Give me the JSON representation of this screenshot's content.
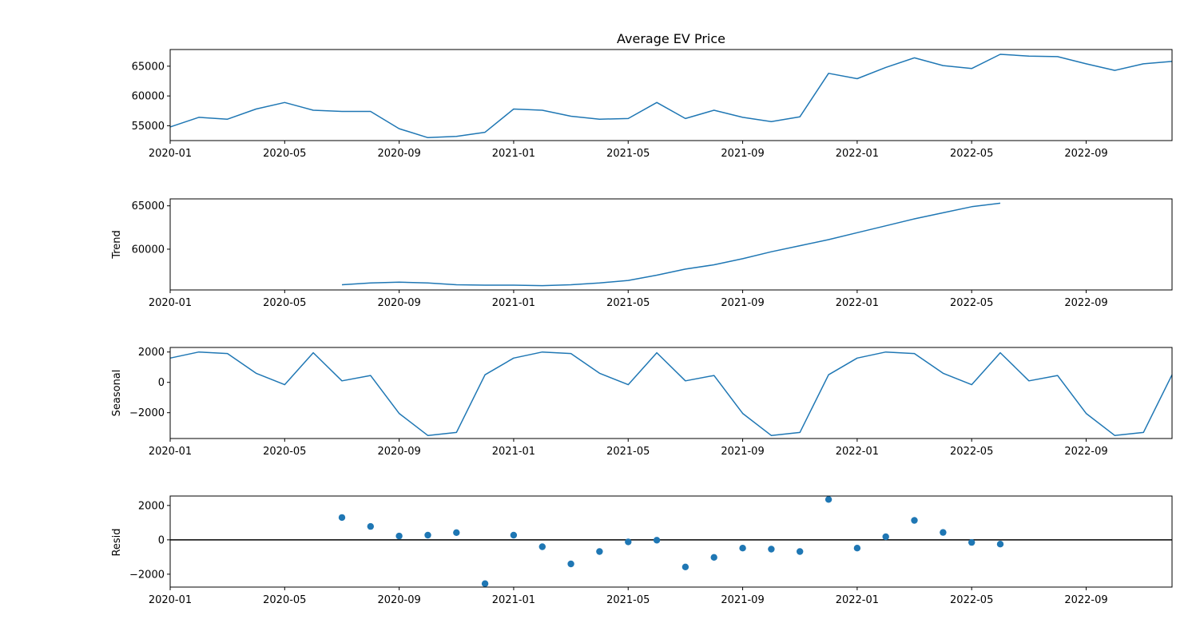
{
  "chart_data": [
    {
      "type": "line",
      "title": "Average EV Price",
      "ylabel": "",
      "xlim": [
        "2020-01",
        "2022-12"
      ],
      "ylim": [
        52500,
        67800
      ],
      "yticks": [
        55000,
        60000,
        65000
      ],
      "xticks": [
        "2020-01",
        "2020-05",
        "2020-09",
        "2021-01",
        "2021-05",
        "2021-09",
        "2022-01",
        "2022-05",
        "2022-09"
      ],
      "color": "#1f77b4",
      "series": [
        {
          "x": [
            "2020-01",
            "2020-02",
            "2020-03",
            "2020-04",
            "2020-05",
            "2020-06",
            "2020-07",
            "2020-08",
            "2020-09",
            "2020-10",
            "2020-11",
            "2020-12",
            "2021-01",
            "2021-02",
            "2021-03",
            "2021-04",
            "2021-05",
            "2021-06",
            "2021-07",
            "2021-08",
            "2021-09",
            "2021-10",
            "2021-11",
            "2021-12",
            "2022-01",
            "2022-02",
            "2022-03",
            "2022-04",
            "2022-05",
            "2022-06",
            "2022-07",
            "2022-08",
            "2022-09",
            "2022-10",
            "2022-11",
            "2022-12"
          ],
          "values": [
            54800,
            56400,
            56100,
            57800,
            58900,
            57600,
            57400,
            57400,
            54500,
            53000,
            53200,
            53900,
            57800,
            57600,
            56600,
            56100,
            56200,
            58900,
            56200,
            57600,
            56400,
            55700,
            56500,
            63800,
            62900,
            64800,
            66400,
            65100,
            64600,
            67000,
            66700,
            66600,
            65400,
            64300,
            65400,
            65800
          ]
        }
      ]
    },
    {
      "type": "line",
      "title": "",
      "ylabel": "Trend",
      "xlim": [
        "2020-01",
        "2022-12"
      ],
      "ylim": [
        55300,
        65800
      ],
      "yticks": [
        60000,
        65000
      ],
      "xticks": [
        "2020-01",
        "2020-05",
        "2020-09",
        "2021-01",
        "2021-05",
        "2021-09",
        "2022-01",
        "2022-05",
        "2022-09"
      ],
      "color": "#1f77b4",
      "series": [
        {
          "x": [
            "2020-07",
            "2020-08",
            "2020-09",
            "2020-10",
            "2020-11",
            "2020-12",
            "2021-01",
            "2021-02",
            "2021-03",
            "2021-04",
            "2021-05",
            "2021-06",
            "2021-07",
            "2021-08",
            "2021-09",
            "2021-10",
            "2021-11",
            "2021-12",
            "2022-01",
            "2022-02",
            "2022-03",
            "2022-04",
            "2022-05",
            "2022-06"
          ],
          "values": [
            55900,
            56100,
            56200,
            56100,
            55900,
            55850,
            55850,
            55800,
            55900,
            56100,
            56400,
            57000,
            57700,
            58200,
            58900,
            59700,
            60400,
            61100,
            61900,
            62700,
            63500,
            64200,
            64900,
            65300
          ]
        }
      ]
    },
    {
      "type": "line",
      "title": "",
      "ylabel": "Seasonal",
      "xlim": [
        "2020-01",
        "2022-12"
      ],
      "ylim": [
        -3700,
        2300
      ],
      "yticks": [
        -2000,
        0,
        2000
      ],
      "xticks": [
        "2020-01",
        "2020-05",
        "2020-09",
        "2021-01",
        "2021-05",
        "2021-09",
        "2022-01",
        "2022-05",
        "2022-09"
      ],
      "color": "#1f77b4",
      "series": [
        {
          "x": [
            "2020-01",
            "2020-02",
            "2020-03",
            "2020-04",
            "2020-05",
            "2020-06",
            "2020-07",
            "2020-08",
            "2020-09",
            "2020-10",
            "2020-11",
            "2020-12",
            "2021-01",
            "2021-02",
            "2021-03",
            "2021-04",
            "2021-05",
            "2021-06",
            "2021-07",
            "2021-08",
            "2021-09",
            "2021-10",
            "2021-11",
            "2021-12",
            "2022-01",
            "2022-02",
            "2022-03",
            "2022-04",
            "2022-05",
            "2022-06",
            "2022-07",
            "2022-08",
            "2022-09",
            "2022-10",
            "2022-11",
            "2022-12"
          ],
          "values": [
            1600,
            2000,
            1900,
            600,
            -150,
            1950,
            100,
            450,
            -2050,
            -3500,
            -3300,
            500,
            1600,
            2000,
            1900,
            600,
            -150,
            1950,
            100,
            450,
            -2050,
            -3500,
            -3300,
            500,
            1600,
            2000,
            1900,
            600,
            -150,
            1950,
            100,
            450,
            -2050,
            -3500,
            -3300,
            500
          ]
        }
      ]
    },
    {
      "type": "scatter",
      "title": "",
      "ylabel": "Resid",
      "xlim": [
        "2020-01",
        "2022-12"
      ],
      "ylim": [
        -2750,
        2550
      ],
      "yticks": [
        -2000,
        0,
        2000
      ],
      "xticks": [
        "2020-01",
        "2020-05",
        "2020-09",
        "2021-01",
        "2021-05",
        "2021-09",
        "2022-01",
        "2022-05",
        "2022-09"
      ],
      "color": "#1f77b4",
      "baseline": 0,
      "series": [
        {
          "x": [
            "2020-07",
            "2020-08",
            "2020-09",
            "2020-10",
            "2020-11",
            "2020-12",
            "2021-01",
            "2021-02",
            "2021-03",
            "2021-04",
            "2021-05",
            "2021-06",
            "2021-07",
            "2021-08",
            "2021-09",
            "2021-10",
            "2021-11",
            "2021-12",
            "2022-01",
            "2022-02",
            "2022-03",
            "2022-04",
            "2022-05",
            "2022-06"
          ],
          "values": [
            1300,
            780,
            220,
            270,
            420,
            -2550,
            270,
            -400,
            -1400,
            -680,
            -120,
            -20,
            -1580,
            -1020,
            -480,
            -540,
            -680,
            2350,
            -480,
            180,
            1130,
            430,
            -150,
            -250
          ]
        }
      ]
    }
  ]
}
